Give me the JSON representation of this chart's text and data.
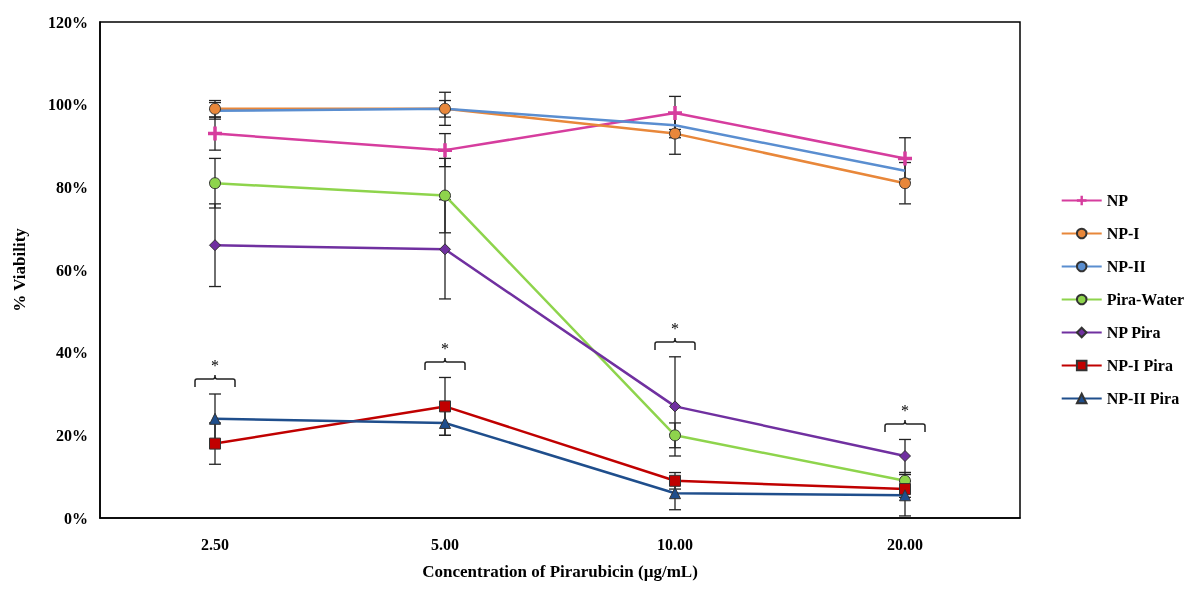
{
  "chart_data": {
    "type": "line",
    "xlabel": "Concentration of Pirarubicin (µg/mL)",
    "ylabel": "% Viability",
    "categories": [
      "2.50",
      "5.00",
      "10.00",
      "20.00"
    ],
    "ylim": [
      0,
      120
    ],
    "yticks": [
      {
        "value": 0,
        "label": "0%"
      },
      {
        "value": 20,
        "label": "20%"
      },
      {
        "value": 40,
        "label": "40%"
      },
      {
        "value": 60,
        "label": "60%"
      },
      {
        "value": 80,
        "label": "80%"
      },
      {
        "value": 100,
        "label": "100%"
      },
      {
        "value": 120,
        "label": "120%"
      }
    ],
    "grid": false,
    "legend": "right",
    "series": [
      {
        "name": "NP",
        "color": "#d63d9e",
        "marker": "cross",
        "values": [
          93,
          89,
          98,
          87
        ],
        "errors": [
          4,
          4,
          4,
          5
        ]
      },
      {
        "name": "NP-I",
        "color": "#e8873a",
        "marker": "circle",
        "values": [
          99,
          99,
          93,
          81
        ],
        "errors": [
          2,
          4,
          5,
          5
        ]
      },
      {
        "name": "NP-II",
        "color": "#5a8ed0",
        "marker": "none",
        "values": [
          98.5,
          99,
          95,
          84
        ],
        "errors": [
          2,
          2,
          3,
          null
        ]
      },
      {
        "name": "Pira-Water",
        "color": "#8ed44c",
        "marker": "circle",
        "values": [
          81,
          78,
          20,
          9
        ],
        "errors": [
          6,
          9,
          3,
          2
        ]
      },
      {
        "name": "NP Pira",
        "color": "#7030a0",
        "marker": "diamond",
        "values": [
          66,
          65,
          27,
          15
        ],
        "errors": [
          10,
          12,
          12,
          4
        ]
      },
      {
        "name": "NP-I Pira",
        "color": "#c00000",
        "marker": "square",
        "values": [
          18,
          27,
          9,
          7
        ],
        "errors": [
          5,
          7,
          2,
          2
        ]
      },
      {
        "name": "NP-II Pira",
        "color": "#1f4e8c",
        "marker": "triangle",
        "values": [
          24,
          23,
          6,
          5.5
        ],
        "errors": [
          6,
          3,
          4,
          5
        ]
      }
    ],
    "annotations": [
      "*",
      "*",
      "*",
      "*"
    ]
  }
}
